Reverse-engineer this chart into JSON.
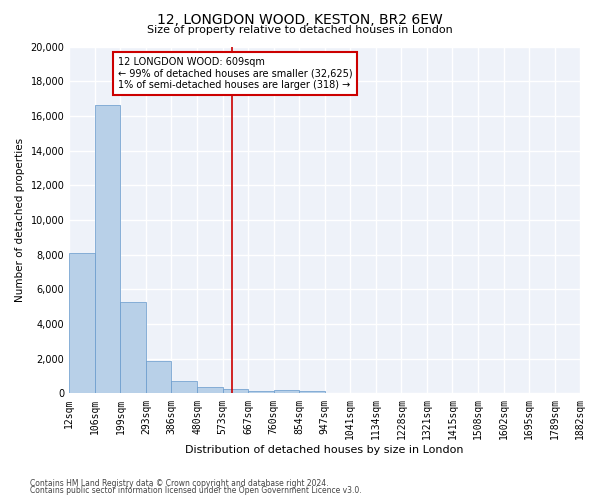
{
  "title1": "12, LONGDON WOOD, KESTON, BR2 6EW",
  "title2": "Size of property relative to detached houses in London",
  "xlabel": "Distribution of detached houses by size in London",
  "ylabel": "Number of detached properties",
  "footnote1": "Contains HM Land Registry data © Crown copyright and database right 2024.",
  "footnote2": "Contains public sector information licensed under the Open Government Licence v3.0.",
  "annotation_line1": "12 LONGDON WOOD: 609sqm",
  "annotation_line2": "← 99% of detached houses are smaller (32,625)",
  "annotation_line3": "1% of semi-detached houses are larger (318) →",
  "property_size": 609,
  "bar_color": "#b8d0e8",
  "bar_edge_color": "#6699cc",
  "vline_color": "#cc0000",
  "annotation_box_color": "#cc0000",
  "background_color": "#eef2f9",
  "grid_color": "#ffffff",
  "bin_edges": [
    12,
    106,
    199,
    293,
    386,
    480,
    573,
    667,
    760,
    854,
    947,
    1041,
    1134,
    1228,
    1321,
    1415,
    1508,
    1602,
    1695,
    1789,
    1882
  ],
  "bar_heights": [
    8100,
    16600,
    5300,
    1850,
    700,
    370,
    270,
    170,
    190,
    150,
    0,
    0,
    0,
    0,
    0,
    0,
    0,
    0,
    0,
    0
  ],
  "ylim": [
    0,
    20000
  ],
  "yticks": [
    0,
    2000,
    4000,
    6000,
    8000,
    10000,
    12000,
    14000,
    16000,
    18000,
    20000
  ]
}
